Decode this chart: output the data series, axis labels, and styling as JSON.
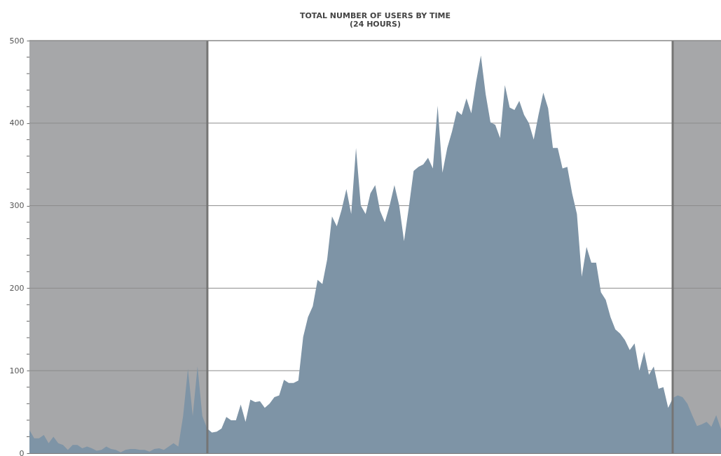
{
  "chart_data": {
    "type": "area",
    "title": "TOTAL NUMBER OF USERS BY TIME",
    "subtitle": "(24 HOURS)",
    "categories": [
      null,
      null,
      null,
      null,
      null,
      null,
      null,
      null,
      null,
      null,
      null,
      null,
      null,
      null,
      null,
      null,
      null,
      null,
      null,
      null,
      null,
      null,
      null,
      null,
      null,
      null,
      null,
      null,
      null,
      null,
      null,
      null,
      null,
      null,
      null,
      null,
      null,
      null,
      null,
      null,
      null,
      null,
      null,
      null,
      null,
      null,
      null,
      null,
      null,
      null,
      null,
      null,
      null,
      null,
      null,
      null,
      null,
      null,
      null,
      null,
      null,
      null,
      null,
      null,
      null,
      null,
      null,
      null,
      null,
      null,
      null,
      null,
      null,
      null,
      null,
      null,
      null,
      null,
      null,
      null,
      null,
      null,
      null,
      null,
      null,
      null,
      null,
      null,
      null,
      null,
      null,
      null,
      null,
      null,
      null,
      null,
      null,
      null,
      null,
      null,
      null,
      null,
      null,
      null,
      null,
      null,
      null,
      null,
      null,
      null,
      null,
      null,
      null,
      null,
      null,
      null,
      null,
      null,
      null,
      null,
      null,
      null,
      null,
      null,
      null,
      null,
      null,
      null,
      null,
      null,
      null,
      null,
      null,
      null,
      null,
      null,
      null,
      null,
      null,
      null,
      null,
      null,
      null,
      null,
      null
    ],
    "series": [
      {
        "color": "#7e94a6",
        "values": [
          28,
          18,
          18,
          22,
          12,
          20,
          12,
          10,
          4,
          10,
          10,
          6,
          8,
          6,
          3,
          4,
          8,
          5,
          4,
          1,
          4,
          5,
          5,
          4,
          4,
          2,
          5,
          6,
          4,
          8,
          12,
          8,
          45,
          102,
          45,
          105,
          45,
          30,
          25,
          26,
          30,
          44,
          40,
          40,
          59,
          38,
          65,
          62,
          63,
          55,
          60,
          68,
          70,
          89,
          85,
          85,
          88,
          141,
          165,
          178,
          210,
          205,
          235,
          287,
          275,
          295,
          320,
          290,
          370,
          300,
          290,
          315,
          325,
          294,
          280,
          300,
          325,
          300,
          257,
          298,
          342,
          347,
          350,
          358,
          345,
          421,
          340,
          370,
          390,
          415,
          410,
          430,
          412,
          450,
          482,
          435,
          401,
          398,
          382,
          446,
          419,
          416,
          427,
          410,
          400,
          380,
          410,
          437,
          418,
          370,
          370,
          345,
          347,
          315,
          290,
          214,
          250,
          231,
          231,
          195,
          186,
          165,
          150,
          145,
          137,
          125,
          133,
          100,
          123,
          95,
          105,
          78,
          80,
          55,
          67,
          70,
          68,
          60,
          46,
          33,
          35,
          38,
          32,
          46,
          29
        ]
      }
    ],
    "ylim": [
      0,
      500
    ],
    "yticks": [
      0,
      {
        "value": 20,
        "label": null
      },
      {
        "value": 40,
        "label": null
      },
      {
        "value": 60,
        "label": null
      },
      {
        "value": 80,
        "label": null
      },
      100,
      {
        "value": 120,
        "label": null
      },
      {
        "value": 140,
        "label": null
      },
      {
        "value": 160,
        "label": null
      },
      {
        "value": 180,
        "label": null
      },
      200,
      {
        "value": 220,
        "label": null
      },
      {
        "value": 240,
        "label": null
      },
      {
        "value": 260,
        "label": null
      },
      {
        "value": 280,
        "label": null
      },
      300,
      {
        "value": 320,
        "label": null
      },
      {
        "value": 340,
        "label": null
      },
      {
        "value": 360,
        "label": null
      },
      {
        "value": 380,
        "label": null
      },
      400,
      {
        "value": 420,
        "label": null
      },
      {
        "value": 440,
        "label": null
      },
      {
        "value": 460,
        "label": null
      },
      {
        "value": 480,
        "label": null
      },
      500
    ],
    "grid": "y",
    "tick_labels": "y"
  }
}
